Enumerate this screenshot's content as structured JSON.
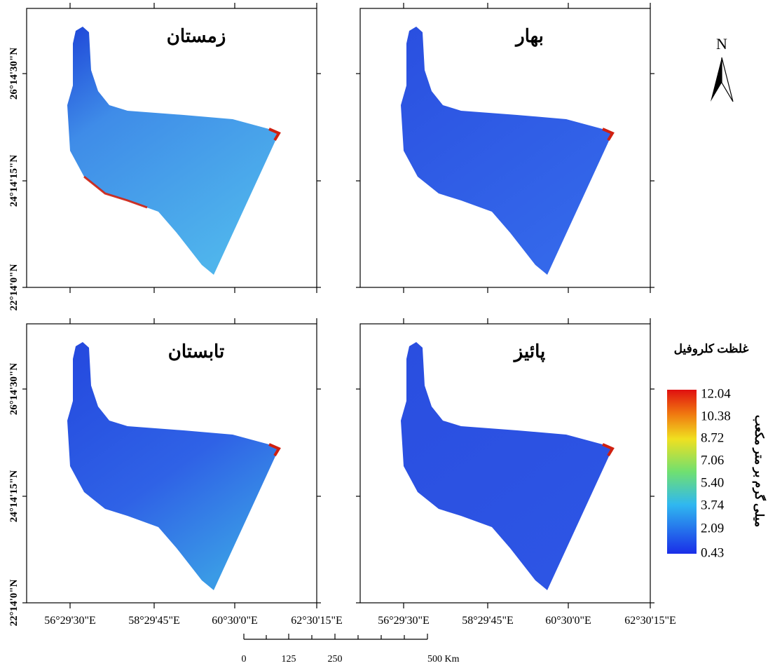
{
  "panels": [
    {
      "title": "زمستان"
    },
    {
      "title": "بهار"
    },
    {
      "title": "تابستان"
    },
    {
      "title": "پائیز"
    }
  ],
  "latitude_labels": [
    "26°14'30\"N",
    "24°14'15\"N",
    "22°14'0\"N"
  ],
  "longitude_labels": [
    "56°29'30\"E",
    "58°29'45\"E",
    "60°30'0\"E",
    "62°30'15\"E"
  ],
  "north_label": "N",
  "legend": {
    "title": "غلظت کلروفیل",
    "unit": "میلی گرم بر متر مکعب",
    "values": [
      "12.04",
      "10.38",
      "8.72",
      "7.06",
      "5.40",
      "3.74",
      "2.09",
      "0.43"
    ]
  },
  "scale_bar": {
    "labels": [
      "0",
      "125",
      "250",
      "500 Km"
    ]
  }
}
